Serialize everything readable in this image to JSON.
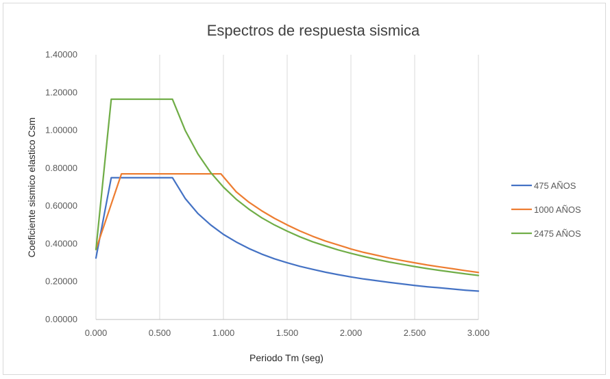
{
  "chart_data": {
    "type": "line",
    "title": "Espectros de respuesta sismica",
    "xlabel": "Periodo Tm (seg)",
    "ylabel": "Coeficiente sismico elastico Csm",
    "xlim": [
      0,
      3.0
    ],
    "ylim": [
      0,
      1.4
    ],
    "x_ticks": [
      0,
      0.5,
      1.0,
      1.5,
      2.0,
      2.5,
      3.0
    ],
    "x_tick_labels": [
      "0.000",
      "0.500",
      "1.000",
      "1.500",
      "2.000",
      "2.500",
      "3.000"
    ],
    "y_ticks": [
      0,
      0.2,
      0.4,
      0.6,
      0.8,
      1.0,
      1.2,
      1.4
    ],
    "y_tick_labels": [
      "0.00000",
      "0.20000",
      "0.40000",
      "0.60000",
      "0.80000",
      "1.00000",
      "1.20000",
      "1.40000"
    ],
    "grid": "vertical",
    "legend_position": "right",
    "series": [
      {
        "name": "475 AÑOS",
        "color": "#4472c4",
        "x": [
          0.0,
          0.12,
          0.6,
          0.7,
          0.8,
          0.9,
          1.0,
          1.1,
          1.2,
          1.3,
          1.4,
          1.5,
          1.6,
          1.7,
          1.8,
          1.9,
          2.0,
          2.1,
          2.2,
          2.3,
          2.4,
          2.5,
          2.6,
          2.7,
          2.8,
          2.9,
          3.0
        ],
        "y": [
          0.325,
          0.75,
          0.75,
          0.64,
          0.56,
          0.5,
          0.45,
          0.41,
          0.375,
          0.346,
          0.321,
          0.3,
          0.281,
          0.265,
          0.25,
          0.237,
          0.225,
          0.214,
          0.205,
          0.196,
          0.188,
          0.18,
          0.173,
          0.167,
          0.161,
          0.155,
          0.15
        ]
      },
      {
        "name": "1000 AÑOS",
        "color": "#ed7d31",
        "x": [
          0.0,
          0.2,
          0.98,
          1.1,
          1.2,
          1.3,
          1.4,
          1.5,
          1.6,
          1.7,
          1.8,
          1.9,
          2.0,
          2.1,
          2.2,
          2.3,
          2.4,
          2.5,
          2.6,
          2.7,
          2.8,
          2.9,
          3.0
        ],
        "y": [
          0.37,
          0.77,
          0.77,
          0.675,
          0.62,
          0.575,
          0.535,
          0.5,
          0.468,
          0.44,
          0.415,
          0.394,
          0.373,
          0.355,
          0.34,
          0.325,
          0.312,
          0.3,
          0.288,
          0.278,
          0.268,
          0.258,
          0.249
        ]
      },
      {
        "name": "2475 AÑOS",
        "color": "#70ad47",
        "x": [
          0.0,
          0.12,
          0.6,
          0.7,
          0.8,
          0.9,
          1.0,
          1.1,
          1.2,
          1.3,
          1.4,
          1.5,
          1.6,
          1.7,
          1.8,
          1.9,
          2.0,
          2.1,
          2.2,
          2.3,
          2.4,
          2.5,
          2.6,
          2.7,
          2.8,
          2.9,
          3.0
        ],
        "y": [
          0.37,
          1.165,
          1.165,
          1.0,
          0.875,
          0.777,
          0.7,
          0.636,
          0.583,
          0.538,
          0.5,
          0.467,
          0.437,
          0.411,
          0.389,
          0.368,
          0.35,
          0.333,
          0.318,
          0.304,
          0.292,
          0.28,
          0.269,
          0.259,
          0.25,
          0.241,
          0.233
        ]
      }
    ]
  }
}
